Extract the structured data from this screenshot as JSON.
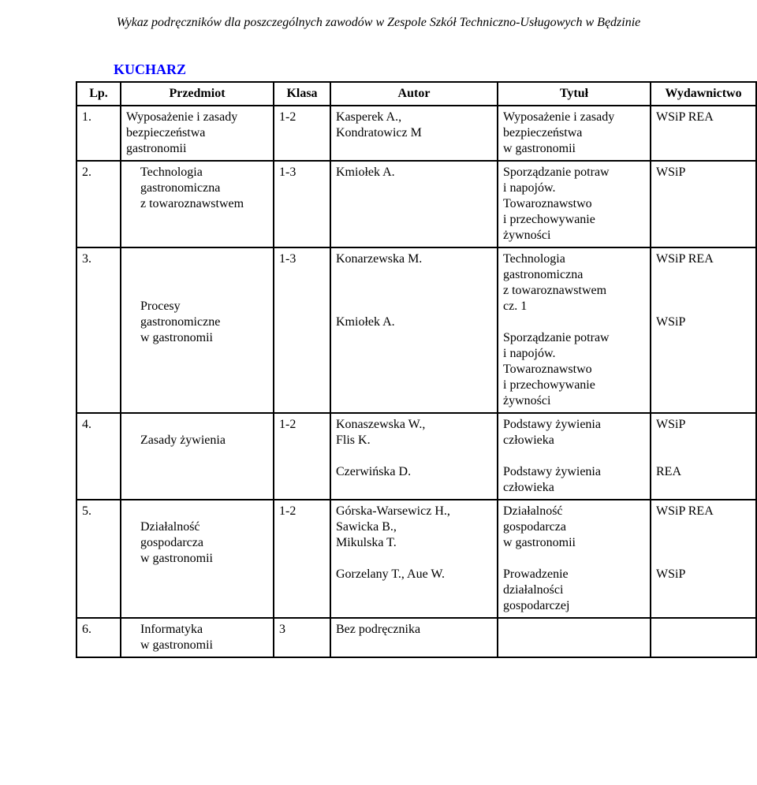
{
  "doc_title": "Wykaz podręczników dla poszczególnych zawodów w Zespole Szkół Techniczno-Usługowych w Będzinie",
  "section_heading": "KUCHARZ",
  "headers": {
    "lp": "Lp.",
    "przedmiot": "Przedmiot",
    "klasa": "Klasa",
    "autor": "Autor",
    "tytul": "Tytuł",
    "wyd": "Wydawnictwo"
  },
  "rows": [
    {
      "lp": "1.",
      "przedmiot": "Wyposażenie i zasady\nbezpieczeństwa\ngastronomii",
      "klasa": "1-2",
      "autor": "Kasperek A.,\nKondratowicz M",
      "tytul": "Wyposażenie i zasady\nbezpieczeństwa\nw gastronomii",
      "wyd": "WSiP REA"
    },
    {
      "lp": "2.",
      "przedmiot": "Technologia\ngastronomiczna\nz towaroznawstwem",
      "przedmiot_indent": true,
      "klasa": "1-3",
      "autor": "Kmiołek A.",
      "tytul": "Sporządzanie potraw\ni napojów.\nTowaroznawstwo\ni przechowywanie\nżywności",
      "wyd": "WSiP"
    },
    {
      "lp": "3.",
      "przedmiot": "\n\n\nProcesy\ngastronomiczne\nw gastronomii",
      "przedmiot_indent": true,
      "klasa": "1-3",
      "autor": "Konarzewska M.\n\n\n\nKmiołek A.",
      "tytul": "Technologia\ngastronomiczna\nz towaroznawstwem\ncz. 1\n\nSporządzanie potraw\ni napojów.\nTowaroznawstwo\ni przechowywanie\nżywności",
      "wyd": "WSiP REA\n\n\n\nWSiP"
    },
    {
      "lp": "4.",
      "przedmiot": "\nZasady żywienia",
      "przedmiot_indent": true,
      "klasa": "1-2",
      "autor": "Konaszewska W.,\nFlis K.\n\nCzerwińska D.",
      "tytul": "Podstawy żywienia\nczłowieka\n\nPodstawy żywienia\nczłowieka",
      "wyd": "WSiP\n\n\nREA"
    },
    {
      "lp": "5.",
      "przedmiot": "\nDziałalność\ngospodarcza\nw gastronomii",
      "przedmiot_indent": true,
      "klasa": "1-2",
      "autor": "Górska-Warsewicz H.,\nSawicka B.,\nMikulska T.\n\nGorzelany T., Aue W.",
      "tytul": "Działalność\ngospodarcza\nw gastronomii\n\nProwadzenie\ndziałalności\ngospodarczej",
      "wyd": "WSiP REA\n\n\n\nWSiP"
    },
    {
      "lp": "6.",
      "przedmiot": "Informatyka\nw gastronomii",
      "przedmiot_indent": true,
      "klasa": "3",
      "autor": "Bez podręcznika",
      "tytul": "",
      "wyd": ""
    }
  ]
}
